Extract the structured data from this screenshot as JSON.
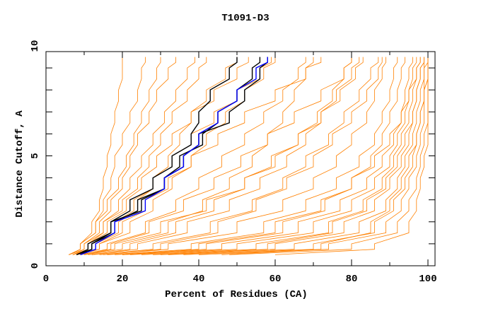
{
  "chart_data": {
    "type": "line",
    "title": "T1091-D3",
    "xlabel": "Percent of Residues (CA)",
    "ylabel": "Distance Cutoff, A",
    "xlim": [
      0,
      100
    ],
    "ylim": [
      0,
      10
    ],
    "x_ticks": [
      "0",
      "20",
      "40",
      "60",
      "80",
      "100"
    ],
    "y_ticks": [
      "0",
      "5",
      "10"
    ],
    "grid": false,
    "cutoffs": [
      0.5,
      1,
      2,
      3,
      4,
      5,
      6,
      7,
      8,
      9,
      9.5
    ],
    "colors": {
      "others": "#ff8000",
      "highlight": "#000000",
      "selected": "#0000ff"
    },
    "series": [
      {
        "group": "others",
        "x": [
          6,
          9,
          12,
          14,
          15,
          16,
          17,
          18,
          19,
          20,
          20
        ]
      },
      {
        "group": "others",
        "x": [
          6,
          9,
          13,
          15,
          17,
          18,
          20,
          22,
          24,
          25,
          26
        ]
      },
      {
        "group": "others",
        "x": [
          7,
          10,
          14,
          17,
          20,
          22,
          24,
          27,
          29,
          32,
          34
        ]
      },
      {
        "group": "others",
        "x": [
          7,
          11,
          15,
          19,
          22,
          25,
          28,
          31,
          34,
          37,
          39
        ]
      },
      {
        "group": "others",
        "x": [
          6,
          10,
          15,
          20,
          24,
          27,
          30,
          33,
          37,
          40,
          42
        ]
      },
      {
        "group": "others",
        "x": [
          8,
          13,
          19,
          24,
          28,
          32,
          35,
          38,
          42,
          47,
          50
        ]
      },
      {
        "group": "others",
        "x": [
          8,
          14,
          22,
          28,
          33,
          38,
          42,
          47,
          52,
          57,
          60
        ]
      },
      {
        "group": "others",
        "x": [
          9,
          16,
          26,
          34,
          40,
          46,
          52,
          57,
          62,
          66,
          68
        ]
      },
      {
        "group": "others",
        "x": [
          10,
          20,
          32,
          41,
          48,
          54,
          58,
          62,
          65,
          68,
          70
        ]
      },
      {
        "group": "others",
        "x": [
          11,
          24,
          37,
          48,
          56,
          63,
          68,
          72,
          76,
          80,
          82
        ]
      },
      {
        "group": "others",
        "x": [
          12,
          28,
          43,
          54,
          62,
          68,
          74,
          78,
          82,
          85,
          87
        ]
      },
      {
        "group": "others",
        "x": [
          14,
          32,
          50,
          62,
          70,
          76,
          80,
          84,
          86,
          88,
          89
        ]
      },
      {
        "group": "others",
        "x": [
          16,
          38,
          57,
          68,
          76,
          82,
          86,
          88,
          90,
          91,
          92
        ]
      },
      {
        "group": "others",
        "x": [
          18,
          42,
          62,
          73,
          80,
          85,
          88,
          90,
          92,
          93,
          94
        ]
      },
      {
        "group": "others",
        "x": [
          20,
          46,
          66,
          77,
          84,
          88,
          91,
          93,
          94,
          95,
          96
        ]
      },
      {
        "group": "others",
        "x": [
          22,
          50,
          70,
          80,
          86,
          90,
          92,
          94,
          95,
          96,
          97
        ]
      },
      {
        "group": "others",
        "x": [
          25,
          55,
          74,
          83,
          88,
          91,
          93,
          95,
          96,
          97,
          98
        ]
      },
      {
        "group": "others",
        "x": [
          28,
          60,
          78,
          86,
          90,
          93,
          95,
          96,
          97,
          98,
          99
        ]
      },
      {
        "group": "others",
        "x": [
          32,
          65,
          82,
          89,
          92,
          94,
          96,
          97,
          98,
          99,
          99
        ]
      },
      {
        "group": "others",
        "x": [
          36,
          70,
          86,
          91,
          94,
          96,
          97,
          98,
          99,
          99,
          100
        ]
      },
      {
        "group": "others",
        "x": [
          40,
          74,
          89,
          93,
          95,
          97,
          98,
          99,
          99,
          100,
          100
        ]
      },
      {
        "group": "others",
        "x": [
          48,
          80,
          92,
          95,
          97,
          98,
          99,
          100,
          100,
          100,
          100
        ]
      },
      {
        "group": "others",
        "x": [
          46,
          72,
          85,
          90,
          93,
          95,
          97,
          98,
          99,
          100,
          100
        ]
      },
      {
        "group": "others",
        "x": [
          60,
          86,
          95,
          97,
          98,
          99,
          100,
          100,
          100,
          100,
          100
        ]
      },
      {
        "group": "others",
        "x": [
          30,
          58,
          75,
          84,
          89,
          92,
          94,
          96,
          97,
          98,
          99
        ]
      },
      {
        "group": "others",
        "x": [
          15,
          30,
          45,
          55,
          63,
          70,
          75,
          80,
          84,
          87,
          88
        ]
      },
      {
        "group": "others",
        "x": [
          12,
          22,
          34,
          44,
          52,
          59,
          66,
          72,
          77,
          81,
          83
        ]
      },
      {
        "group": "others",
        "x": [
          9,
          17,
          27,
          36,
          44,
          51,
          58,
          65,
          72,
          78,
          80
        ]
      },
      {
        "group": "others",
        "x": [
          8,
          14,
          20,
          26,
          32,
          38,
          45,
          52,
          60,
          68,
          72
        ]
      },
      {
        "group": "others",
        "x": [
          7,
          12,
          18,
          23,
          28,
          33,
          38,
          44,
          50,
          56,
          59
        ]
      },
      {
        "group": "others",
        "x": [
          7,
          11,
          16,
          21,
          25,
          29,
          33,
          38,
          44,
          50,
          53
        ]
      },
      {
        "group": "others",
        "x": [
          10,
          18,
          30,
          42,
          52,
          60,
          66,
          71,
          75,
          78,
          80
        ]
      },
      {
        "group": "others",
        "x": [
          20,
          40,
          60,
          72,
          80,
          86,
          90,
          93,
          95,
          97,
          98
        ]
      },
      {
        "group": "others",
        "x": [
          6,
          9,
          13,
          16,
          19,
          21,
          23,
          25,
          27,
          29,
          30
        ]
      },
      {
        "group": "highlight",
        "x": [
          8,
          11,
          17,
          22,
          28,
          33,
          38,
          40,
          43,
          48,
          50
        ]
      },
      {
        "group": "highlight",
        "x": [
          9,
          12,
          18,
          24,
          31,
          35,
          41,
          45,
          50,
          54,
          56
        ]
      },
      {
        "group": "highlight",
        "x": [
          8,
          12,
          17,
          25,
          31,
          36,
          40,
          48,
          52,
          56,
          58
        ]
      },
      {
        "group": "selected",
        "x": [
          9,
          13,
          18,
          26,
          31,
          36,
          40,
          45,
          50,
          55,
          58
        ]
      }
    ]
  }
}
